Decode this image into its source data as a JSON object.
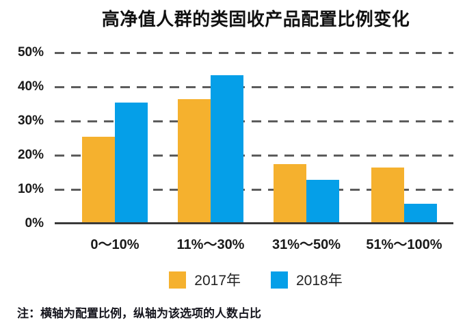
{
  "title": "高净值人群的类固收产品配置比例变化",
  "note": "注：横轴为配置比例，纵轴为该选项的人数占比",
  "legend": [
    {
      "label": "2017年",
      "color": "#F5B12E"
    },
    {
      "label": "2018年",
      "color": "#059FE8"
    }
  ],
  "chart_data": {
    "type": "bar",
    "title": "高净值人群的类固收产品配置比例变化",
    "categories": [
      "0～10%",
      "11%～30%",
      "31%～50%",
      "51%～100%"
    ],
    "series": [
      {
        "name": "2017年",
        "color": "#F5B12E",
        "values": [
          25,
          36,
          17,
          16
        ]
      },
      {
        "name": "2018年",
        "color": "#059FE8",
        "values": [
          35,
          43,
          12.5,
          5.5
        ]
      }
    ],
    "xlabel": "配置比例",
    "ylabel": "该选项的人数占比",
    "ylim": [
      0,
      50
    ],
    "yticks": [
      "50%",
      "40%",
      "30%",
      "20%",
      "10%",
      "0%"
    ],
    "grid": "horizontal-dashed",
    "legend_position": "bottom"
  }
}
